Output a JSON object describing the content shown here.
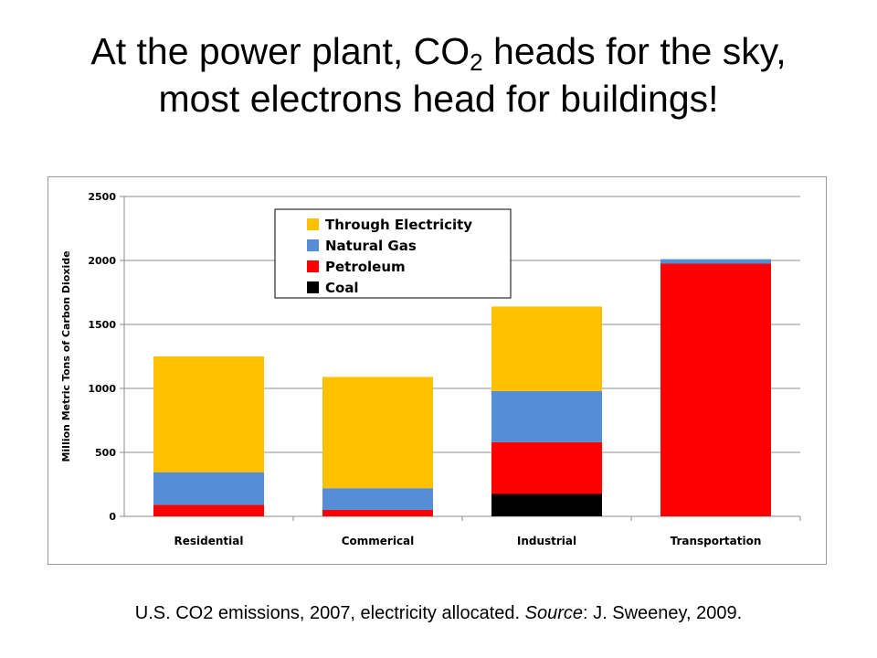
{
  "slide": {
    "title_part1": "At the power plant, CO",
    "title_sub": "2",
    "title_part2": " heads for the sky,",
    "title_line2": "most electrons head for buildings!",
    "caption_part1": "U.S. CO2 emissions, 2007, electricity allocated. ",
    "caption_source_label": "Source",
    "caption_part2": ": J. Sweeney, 2009."
  },
  "chart_data": {
    "type": "bar",
    "stacked": true,
    "categories": [
      "Residential",
      "Commerical",
      "Industrial",
      "Transportation"
    ],
    "series": [
      {
        "name": "Coal",
        "color": "#000000",
        "values": [
          0,
          0,
          175,
          0
        ]
      },
      {
        "name": "Petroleum",
        "color": "#ff0000",
        "values": [
          90,
          50,
          405,
          1975
        ]
      },
      {
        "name": "Natural Gas",
        "color": "#558ed5",
        "values": [
          255,
          170,
          400,
          35
        ]
      },
      {
        "name": "Through Electricity",
        "color": "#ffc000",
        "values": [
          905,
          870,
          660,
          0
        ]
      }
    ],
    "legend_order": [
      "Through Electricity",
      "Natural Gas",
      "Petroleum",
      "Coal"
    ],
    "ylabel": "Million Metric Tons of Carbon Dioxide",
    "xlabel": "",
    "ylim": [
      0,
      2500
    ],
    "yticks": [
      0,
      500,
      1000,
      1500,
      2000,
      2500
    ],
    "grid": true,
    "legend_position": "top-center"
  }
}
